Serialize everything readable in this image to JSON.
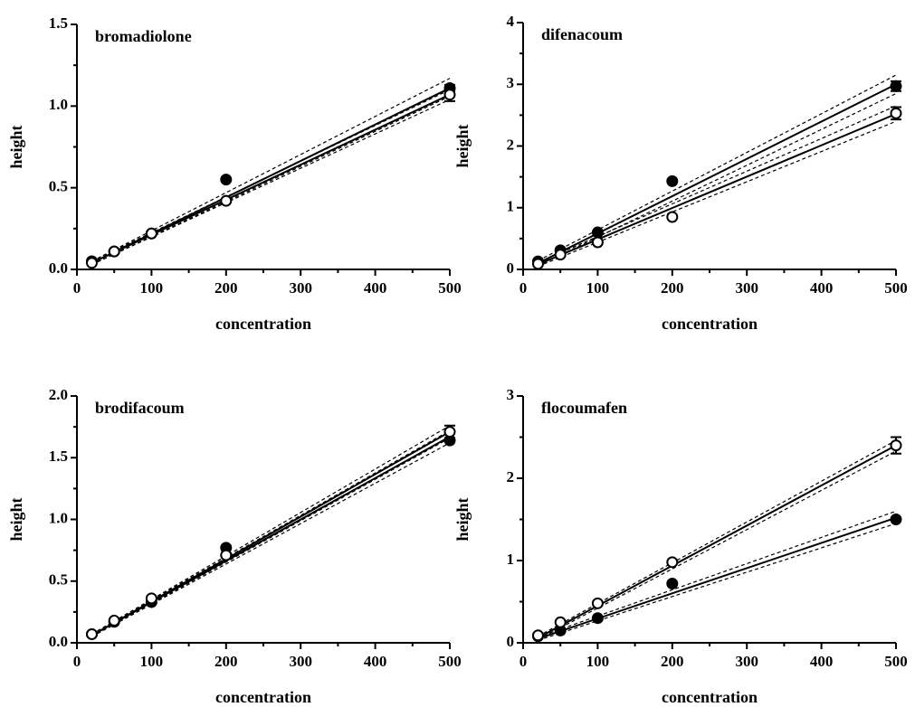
{
  "chart_data": [
    {
      "type": "scatter",
      "title": "bromadiolone",
      "x_label": "concentration",
      "y_label": "height",
      "x": [
        20,
        50,
        100,
        200,
        500
      ],
      "fit_x": [
        20,
        500
      ],
      "xlim": [
        0,
        500
      ],
      "xticks": [
        0,
        100,
        200,
        300,
        400,
        500
      ],
      "ylim": [
        0,
        1.5
      ],
      "yticks": [
        {
          "value": 0,
          "label": "0.0"
        },
        0.5,
        {
          "value": 1,
          "label": "1.0"
        },
        1.5
      ],
      "series": [
        {
          "color": "#000000",
          "marker": "filled",
          "values": [
            0.05,
            0.11,
            0.22,
            0.55,
            1.11
          ],
          "errors": [
            null,
            null,
            null,
            null,
            0.02
          ],
          "fit": [
            0.04,
            1.11
          ],
          "band_upper": [
            0.05,
            1.17
          ],
          "band_lower": [
            0.03,
            1.06
          ]
        },
        {
          "color": "#000000",
          "marker": "open",
          "values": [
            0.04,
            0.11,
            0.22,
            0.42,
            1.07
          ],
          "errors": [
            null,
            null,
            null,
            null,
            0.04
          ],
          "fit": [
            0.04,
            1.07
          ],
          "band_upper": [
            0.05,
            1.1
          ],
          "band_lower": [
            0.03,
            1.04
          ]
        }
      ]
    },
    {
      "type": "scatter",
      "title": "difenacoum",
      "x_label": "concentration",
      "y_label": "height",
      "x": [
        20,
        50,
        100,
        200,
        500
      ],
      "fit_x": [
        20,
        500
      ],
      "xlim": [
        0,
        500
      ],
      "xticks": [
        0,
        100,
        200,
        300,
        400,
        500
      ],
      "ylim": [
        0,
        4
      ],
      "yticks": [
        0,
        1,
        2,
        3,
        4
      ],
      "series": [
        {
          "color": "#000000",
          "marker": "filled",
          "values": [
            0.13,
            0.31,
            0.6,
            1.43,
            2.97
          ],
          "errors": [
            null,
            null,
            null,
            null,
            0.08
          ],
          "fit": [
            0.1,
            3.0
          ],
          "band_upper": [
            0.14,
            3.15
          ],
          "band_lower": [
            0.06,
            2.85
          ]
        },
        {
          "color": "#000000",
          "marker": "open",
          "values": [
            0.09,
            0.24,
            0.44,
            0.85,
            2.53
          ],
          "errors": [
            null,
            null,
            null,
            null,
            0.1
          ],
          "fit": [
            0.08,
            2.52
          ],
          "band_upper": [
            0.11,
            2.65
          ],
          "band_lower": [
            0.05,
            2.4
          ]
        }
      ]
    },
    {
      "type": "scatter",
      "title": "brodifacoum",
      "x_label": "concentration",
      "y_label": "height",
      "x": [
        20,
        50,
        100,
        200,
        500
      ],
      "fit_x": [
        20,
        500
      ],
      "xlim": [
        0,
        500
      ],
      "xticks": [
        0,
        100,
        200,
        300,
        400,
        500
      ],
      "ylim": [
        0,
        2
      ],
      "yticks": [
        {
          "value": 0,
          "label": "0.0"
        },
        0.5,
        {
          "value": 1,
          "label": "1.0"
        },
        1.5,
        {
          "value": 2,
          "label": "2.0"
        }
      ],
      "series": [
        {
          "color": "#000000",
          "marker": "filled",
          "values": [
            0.07,
            0.17,
            0.33,
            0.77,
            1.64
          ],
          "errors": [
            null,
            null,
            null,
            null,
            null
          ],
          "fit": [
            0.06,
            1.67
          ],
          "band_upper": [
            0.07,
            1.72
          ],
          "band_lower": [
            0.05,
            1.62
          ]
        },
        {
          "color": "#000000",
          "marker": "open",
          "values": [
            0.07,
            0.18,
            0.36,
            0.71,
            1.71
          ],
          "errors": [
            null,
            null,
            null,
            null,
            0.05
          ],
          "fit": [
            0.06,
            1.71
          ],
          "band_upper": [
            0.07,
            1.76
          ],
          "band_lower": [
            0.05,
            1.66
          ]
        }
      ]
    },
    {
      "type": "scatter",
      "title": "flocoumafen",
      "x_label": "concentration",
      "y_label": "height",
      "x": [
        20,
        50,
        100,
        200,
        500
      ],
      "fit_x": [
        20,
        500
      ],
      "xlim": [
        0,
        500
      ],
      "xticks": [
        0,
        100,
        200,
        300,
        400,
        500
      ],
      "ylim": [
        0,
        3
      ],
      "yticks": [
        0,
        1,
        2,
        3
      ],
      "series": [
        {
          "color": "#000000",
          "marker": "filled",
          "values": [
            0.08,
            0.15,
            0.3,
            0.72,
            1.5
          ],
          "errors": [
            null,
            null,
            null,
            null,
            null
          ],
          "fit": [
            0.05,
            1.52
          ],
          "band_upper": [
            0.07,
            1.6
          ],
          "band_lower": [
            0.03,
            1.45
          ]
        },
        {
          "color": "#000000",
          "marker": "open",
          "values": [
            0.09,
            0.25,
            0.48,
            0.98,
            2.4
          ],
          "errors": [
            null,
            null,
            null,
            null,
            0.1
          ],
          "fit": [
            0.06,
            2.4
          ],
          "band_upper": [
            0.08,
            2.46
          ],
          "band_lower": [
            0.04,
            2.33
          ]
        }
      ]
    }
  ]
}
